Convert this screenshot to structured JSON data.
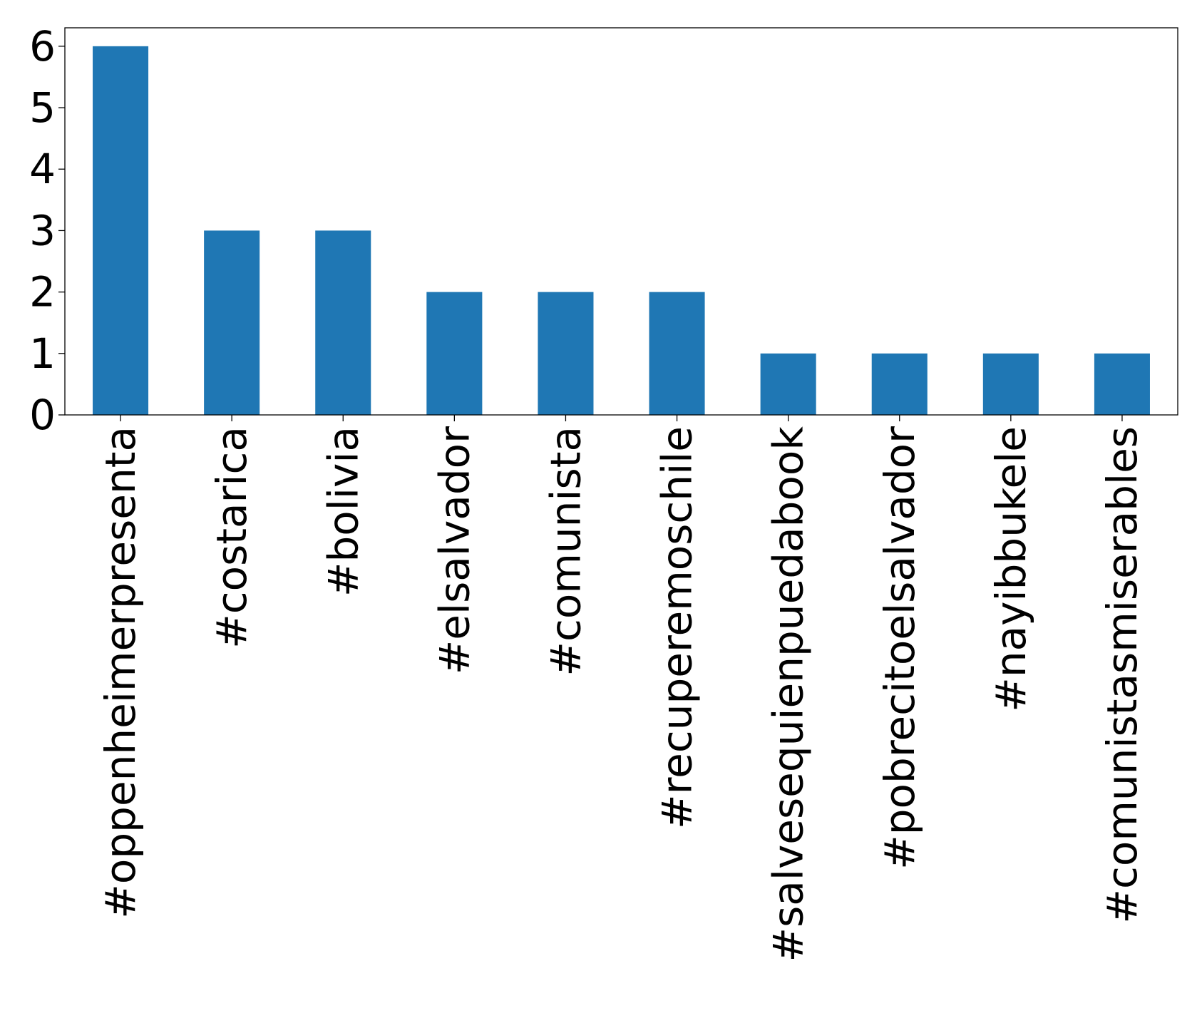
{
  "chart_data": {
    "type": "bar",
    "title": "",
    "xlabel": "",
    "ylabel": "",
    "categories": [
      "#oppenheimerpresenta",
      "#costarica",
      "#bolivia",
      "#elsalvador",
      "#comunista",
      "#recuperemoschile",
      "#salvesequienpuedabook",
      "#pobrecitoelsalvador",
      "#nayibbukele",
      "#comunistasmiserables"
    ],
    "values": [
      6,
      3,
      3,
      2,
      2,
      2,
      1,
      1,
      1,
      1
    ],
    "ylim": [
      0,
      6.3
    ],
    "yticks": [
      0,
      1,
      2,
      3,
      4,
      5,
      6
    ],
    "grid": false,
    "legend": "none",
    "bar_color": "#1f77b4"
  }
}
